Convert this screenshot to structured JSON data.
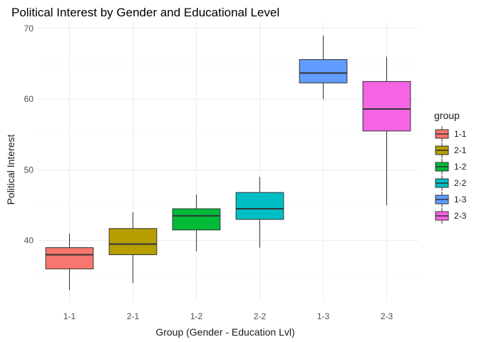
{
  "chart_data": {
    "type": "boxplot",
    "title": "Political Interest by Gender and Educational Level",
    "xlabel": "Group (Gender - Education Lvl)",
    "ylabel": "Political Interest",
    "ylim": [
      31.5,
      71
    ],
    "yticks": [
      40,
      50,
      60,
      70
    ],
    "grid": true,
    "legend": {
      "title": "group",
      "position": "right"
    },
    "categories": [
      "1-1",
      "2-1",
      "1-2",
      "2-2",
      "1-3",
      "2-3"
    ],
    "series": [
      {
        "name": "1-1",
        "color": "#F8766D",
        "min": 33,
        "q1": 36,
        "median": 38,
        "q3": 39,
        "max": 41
      },
      {
        "name": "2-1",
        "color": "#B79F00",
        "min": 34,
        "q1": 38,
        "median": 39.5,
        "q3": 41.7,
        "max": 44
      },
      {
        "name": "1-2",
        "color": "#00BA38",
        "min": 38.5,
        "q1": 41.5,
        "median": 43.5,
        "q3": 44.5,
        "max": 46.5
      },
      {
        "name": "2-2",
        "color": "#00BFC4",
        "min": 39,
        "q1": 43,
        "median": 44.5,
        "q3": 46.8,
        "max": 49
      },
      {
        "name": "1-3",
        "color": "#619CFF",
        "min": 60,
        "q1": 62.3,
        "median": 63.7,
        "q3": 65.6,
        "max": 69
      },
      {
        "name": "2-3",
        "color": "#F564E3",
        "min": 45,
        "q1": 55.5,
        "median": 58.6,
        "q3": 62.5,
        "max": 66
      }
    ]
  }
}
